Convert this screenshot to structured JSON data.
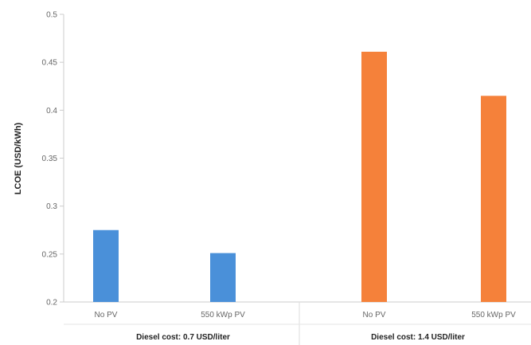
{
  "chart_data": {
    "type": "bar",
    "title": "",
    "xlabel": "",
    "ylabel": "LCOE (USD/kWh)",
    "ylim": [
      0.2,
      0.5
    ],
    "yticks": [
      "0.2",
      "0.25",
      "0.3",
      "0.35",
      "0.4",
      "0.45",
      "0.5"
    ],
    "grid": false,
    "legend": "none",
    "groups": [
      {
        "label": "Diesel cost: 0.7 USD/liter",
        "color": "#4a90d9",
        "bars": [
          {
            "category": "No PV",
            "value": 0.275
          },
          {
            "category": "550 kWp PV",
            "value": 0.251
          }
        ]
      },
      {
        "label": "Diesel cost: 1.4 USD/liter",
        "color": "#f5813a",
        "bars": [
          {
            "category": "No PV",
            "value": 0.461
          },
          {
            "category": "550 kWp PV",
            "value": 0.415
          }
        ]
      }
    ]
  }
}
